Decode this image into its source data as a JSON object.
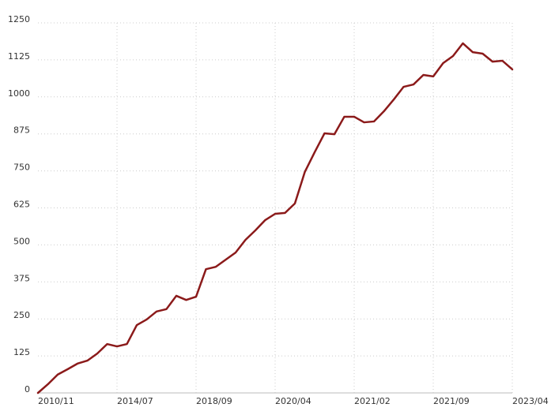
{
  "chart_data": {
    "type": "line",
    "categories": [
      "2010/11",
      null,
      null,
      null,
      null,
      null,
      null,
      null,
      "2014/07",
      null,
      null,
      null,
      null,
      null,
      null,
      null,
      "2018/09",
      null,
      null,
      null,
      null,
      null,
      null,
      null,
      "2020/04",
      null,
      null,
      null,
      null,
      null,
      null,
      null,
      "2021/02",
      null,
      null,
      null,
      null,
      null,
      null,
      null,
      "2021/09",
      null,
      null,
      null,
      null,
      null,
      null,
      null,
      "2023/04"
    ],
    "series": [
      {
        "color": "#8b1a1a",
        "values": [
          0,
          29,
          62,
          80,
          99,
          109,
          133,
          165,
          157,
          165,
          229,
          248,
          275,
          283,
          328,
          314,
          325,
          418,
          426,
          450,
          474,
          517,
          549,
          584,
          605,
          608,
          640,
          746,
          813,
          877,
          874,
          933,
          933,
          914,
          917,
          951,
          991,
          1034,
          1042,
          1074,
          1069,
          1114,
          1138,
          1181,
          1151,
          1146,
          1119,
          1122,
          1093
        ]
      }
    ],
    "ylim": [
      0,
      1250
    ],
    "yticks": [
      0,
      125,
      250,
      375,
      500,
      625,
      750,
      875,
      1000,
      1125,
      1250
    ],
    "grid": true
  }
}
